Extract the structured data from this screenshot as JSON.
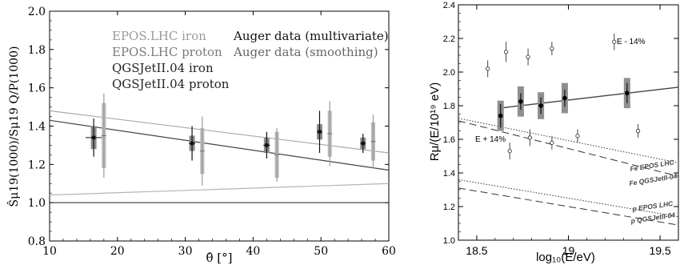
{
  "chart_data": [
    {
      "type": "scatter",
      "xlabel": "θ̂ [°]",
      "ylabel": "Ŝμ19(1000)/Sμ19 Q/P(1000)",
      "xlim": [
        10,
        60
      ],
      "ylim": [
        0.8,
        2.0
      ],
      "xticks": [
        "10",
        "20",
        "30",
        "40",
        "50",
        "60"
      ],
      "yticks": [
        "0.8",
        "1.0",
        "1.2",
        "1.4",
        "1.6",
        "1.8",
        "2.0"
      ],
      "legend": [
        {
          "label": "EPOS.LHC iron",
          "color": "#9a9a9a"
        },
        {
          "label": "EPOS.LHC proton",
          "color": "#7a7a7a"
        },
        {
          "label": "QGSJetII.04 iron",
          "color": "#222222"
        },
        {
          "label": "QGSJetII.04 proton",
          "color": "#222222"
        },
        {
          "label": "Auger data (multivariate)",
          "color": "#111111"
        },
        {
          "label": "Auger data (smoothing)",
          "color": "#666666"
        }
      ],
      "reference_line": {
        "y": 1.0
      },
      "series": [
        {
          "kind": "line",
          "color": "#a8a8a8",
          "x": [
            10,
            60
          ],
          "y": [
            1.48,
            1.26
          ]
        },
        {
          "kind": "line",
          "color": "#444444",
          "x": [
            10,
            60
          ],
          "y": [
            1.43,
            1.17
          ]
        },
        {
          "kind": "line",
          "color": "#b5b5b5",
          "x": [
            10,
            60
          ],
          "y": [
            1.04,
            1.1
          ]
        }
      ],
      "multivariate": {
        "x": [
          16.5,
          31.0,
          42.0,
          49.8,
          56.2
        ],
        "y": [
          1.34,
          1.31,
          1.3,
          1.37,
          1.31
        ],
        "xerr": [
          1.2,
          0.5,
          0.5,
          0.4,
          0.4
        ],
        "err": [
          0.1,
          0.09,
          0.07,
          0.11,
          0.05
        ],
        "sys": [
          0.06,
          0.04,
          0.04,
          0.04,
          0.03
        ]
      },
      "smoothing": {
        "x": [
          18.0,
          32.5,
          43.5,
          51.3,
          57.7
        ],
        "y": [
          1.35,
          1.27,
          1.25,
          1.36,
          1.32
        ],
        "err": [
          0.22,
          0.18,
          0.14,
          0.17,
          0.14
        ],
        "sys": [
          0.17,
          0.12,
          0.12,
          0.12,
          0.1
        ]
      }
    },
    {
      "type": "scatter",
      "xlabel": "log₁₀(E/eV)",
      "ylabel": "Rμ/(E/10¹⁹ eV)",
      "xlim": [
        18.4,
        19.6
      ],
      "ylim": [
        1.0,
        2.4
      ],
      "xticks": [
        "18.5",
        "19",
        "19.5"
      ],
      "yticks": [
        "1.0",
        "1.2",
        "1.4",
        "1.6",
        "1.8",
        "2.0",
        "2.2",
        "2.4"
      ],
      "annotations": [
        "E - 14%",
        "E + 14%",
        "Fe EPOS LHC",
        "Fe QGSJetII-04",
        "p EPOS LHC",
        "p QGSJetII-04"
      ],
      "fit_line": {
        "x": [
          18.63,
          19.6
        ],
        "y": [
          1.786,
          1.91
        ]
      },
      "model_lines": [
        {
          "label": "Fe EPOS LHC",
          "style": "dotted",
          "x": [
            18.4,
            19.6
          ],
          "y": [
            1.725,
            1.46
          ]
        },
        {
          "label": "Fe QGSJetII-04",
          "style": "dashed",
          "x": [
            18.4,
            19.6
          ],
          "y": [
            1.71,
            1.38
          ]
        },
        {
          "label": "p EPOS LHC",
          "style": "dotted",
          "x": [
            18.4,
            19.6
          ],
          "y": [
            1.36,
            1.14
          ]
        },
        {
          "label": "p QGSJetII-04",
          "style": "dashed",
          "x": [
            18.4,
            19.6
          ],
          "y": [
            1.31,
            1.09
          ]
        }
      ],
      "data": {
        "x": [
          18.63,
          18.74,
          18.85,
          18.98,
          19.32
        ],
        "y": [
          1.74,
          1.825,
          1.8,
          1.845,
          1.875
        ],
        "err": [
          0.07,
          0.05,
          0.05,
          0.05,
          0.06
        ],
        "sys": [
          0.09,
          0.09,
          0.08,
          0.09,
          0.09
        ]
      },
      "shift_minus": {
        "x": [
          18.56,
          18.66,
          18.78,
          18.91,
          19.25
        ],
        "y": [
          2.02,
          2.12,
          2.09,
          2.14,
          2.18
        ],
        "err": [
          0.05,
          0.06,
          0.05,
          0.04,
          0.05
        ]
      },
      "shift_plus": {
        "x": [
          18.68,
          18.79,
          18.91,
          19.05,
          19.38
        ],
        "y": [
          1.53,
          1.61,
          1.58,
          1.62,
          1.65
        ],
        "err": [
          0.05,
          0.05,
          0.04,
          0.04,
          0.04
        ]
      }
    }
  ]
}
